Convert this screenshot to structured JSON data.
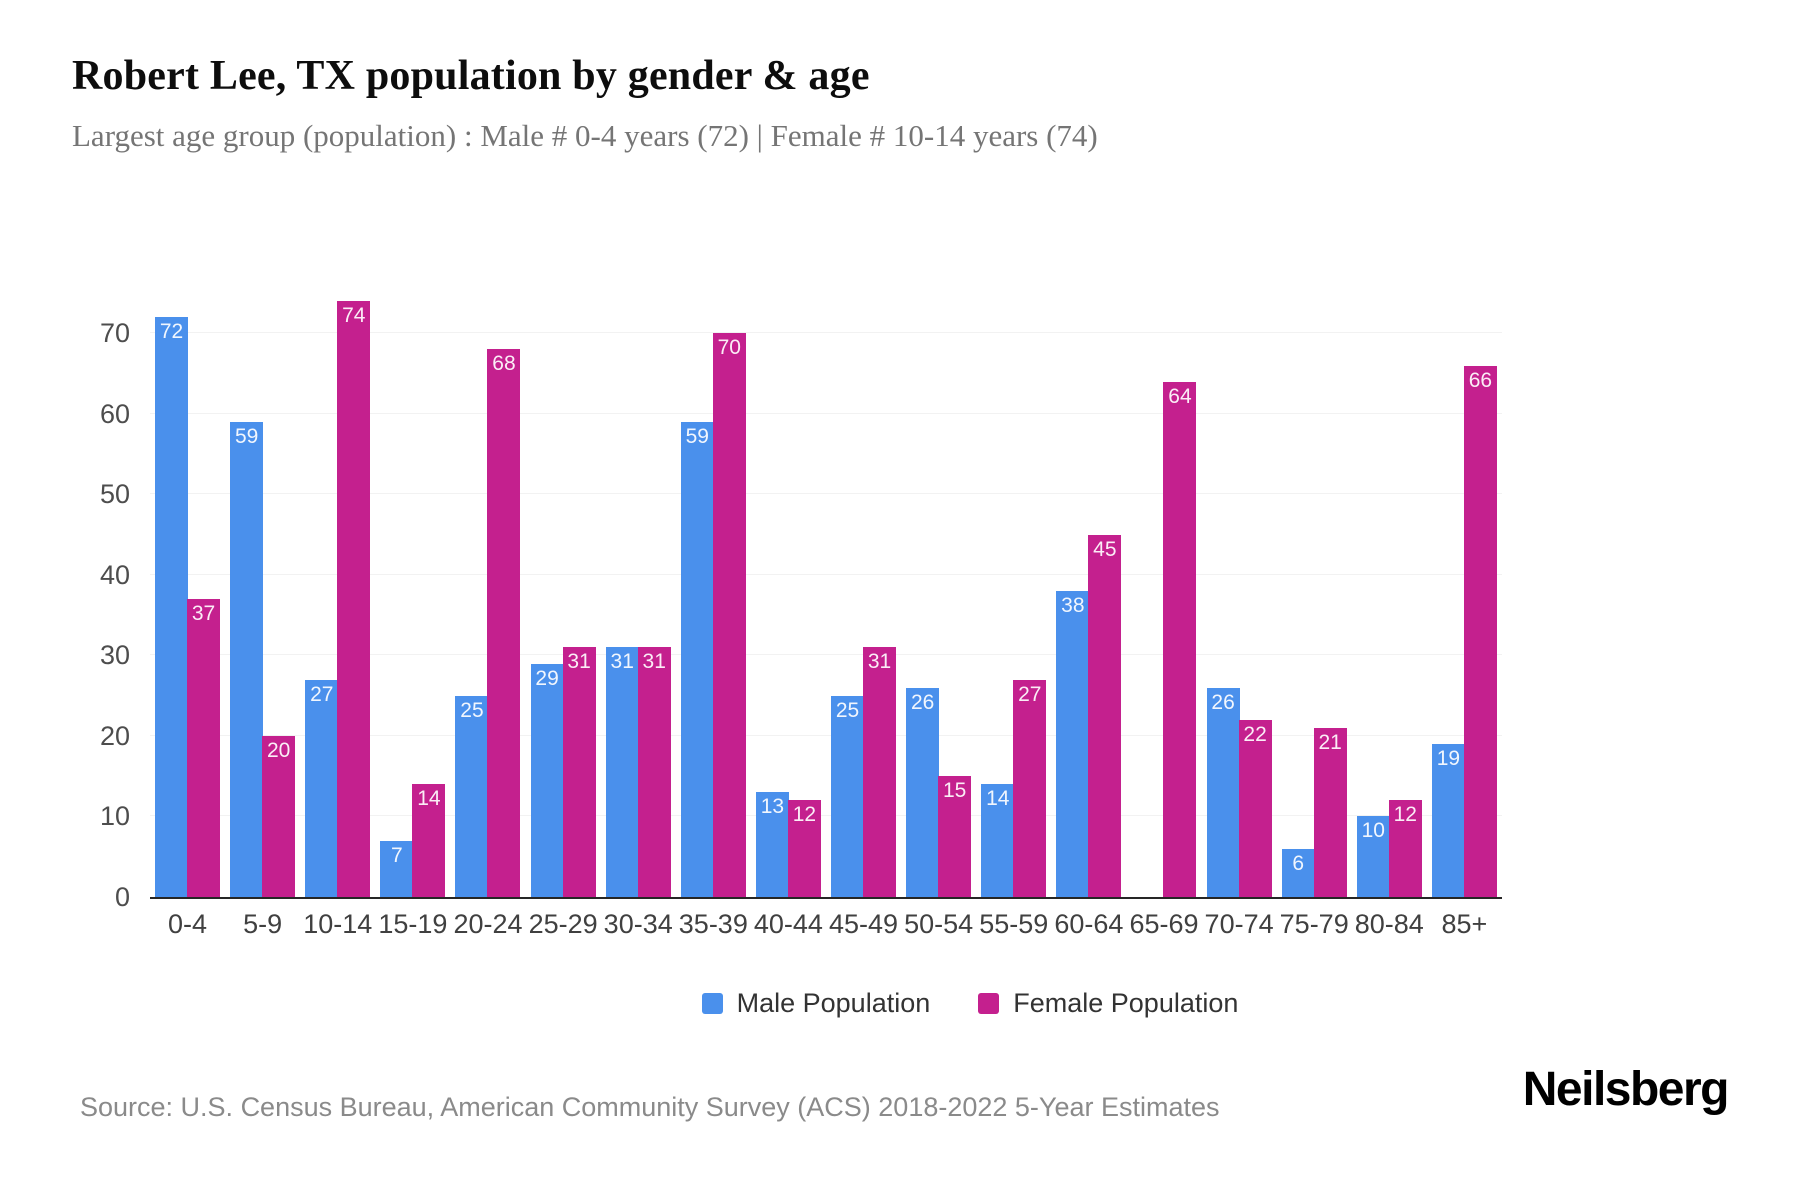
{
  "header": {
    "title": "Robert Lee, TX population by gender & age",
    "subtitle": "Largest age group (population) : Male # 0-4 years (72) | Female # 10-14 years (74)"
  },
  "chart_data": {
    "type": "bar",
    "title": "Robert Lee, TX population by gender & age",
    "categories": [
      "0-4",
      "5-9",
      "10-14",
      "15-19",
      "20-24",
      "25-29",
      "30-34",
      "35-39",
      "40-44",
      "45-49",
      "50-54",
      "55-59",
      "60-64",
      "65-69",
      "70-74",
      "75-79",
      "80-84",
      "85+"
    ],
    "series": [
      {
        "name": "Male Population",
        "color": "#4a90ec",
        "values": [
          72,
          59,
          27,
          7,
          25,
          29,
          31,
          59,
          13,
          25,
          26,
          14,
          38,
          0,
          26,
          6,
          10,
          19
        ]
      },
      {
        "name": "Female Population",
        "color": "#c4208e",
        "values": [
          37,
          20,
          74,
          14,
          68,
          31,
          31,
          70,
          12,
          31,
          15,
          27,
          45,
          64,
          22,
          21,
          12,
          66
        ]
      }
    ],
    "xlabel": "",
    "ylabel": "",
    "ylim": [
      0,
      77
    ],
    "yticks": [
      0,
      10,
      20,
      30,
      40,
      50,
      60,
      70
    ],
    "grid": "horizontal",
    "legend_position": "bottom",
    "bar_value_labels": true
  },
  "footer": {
    "source": "Source: U.S. Census Bureau, American Community Survey (ACS) 2018-2022 5-Year Estimates",
    "brand": "Neilsberg"
  }
}
